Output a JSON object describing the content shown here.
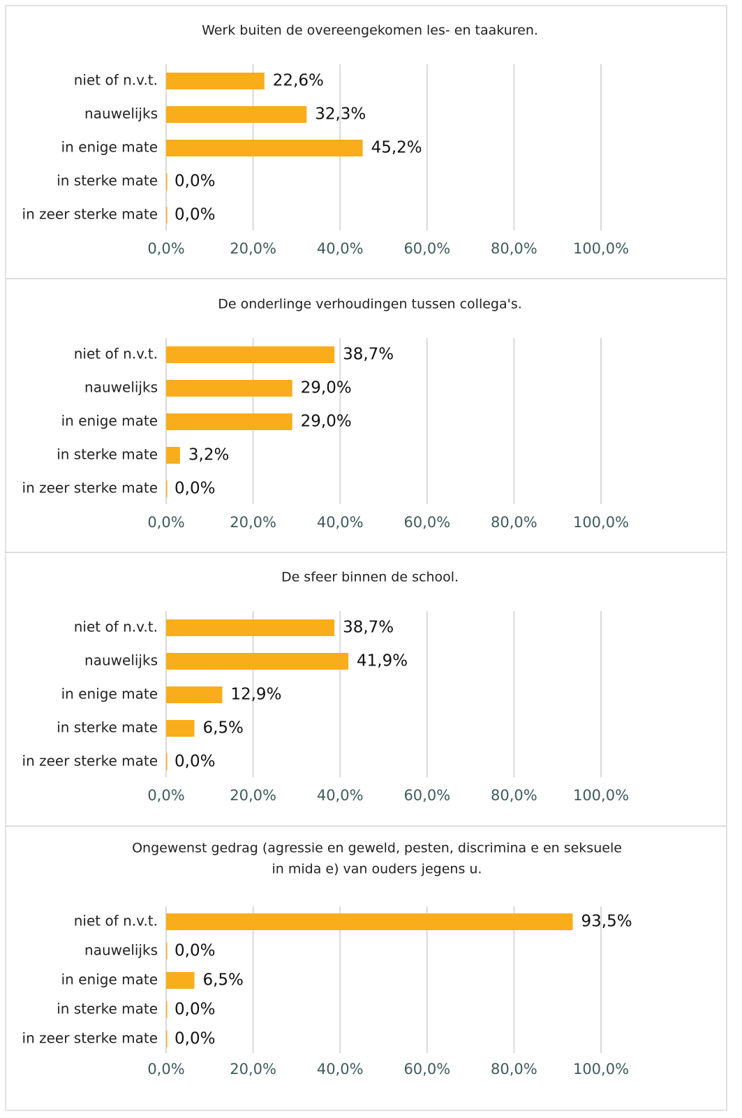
{
  "chart_data": [
    {
      "type": "bar",
      "orientation": "horizontal",
      "title": "Werk buiten de overeengekomen les- en taakuren.",
      "categories": [
        "niet of n.v.t.",
        "nauwelijks",
        "in enige mate",
        "in sterke mate",
        "in zeer sterke mate"
      ],
      "values": [
        22.6,
        32.3,
        45.2,
        0.0,
        0.0
      ],
      "value_labels": [
        "22,6%",
        "32,3%",
        "45,2%",
        "0,0%",
        "0,0%"
      ],
      "color": "#f9ad1b",
      "xlim": [
        0,
        100
      ],
      "xticks": [
        {
          "value": 0,
          "label": "0,0%"
        },
        {
          "value": 20,
          "label": "20,0%"
        },
        {
          "value": 40,
          "label": "40,0%"
        },
        {
          "value": 60,
          "label": "60,0%"
        },
        {
          "value": 80,
          "label": "80,0%"
        },
        {
          "value": 100,
          "label": "100,0%"
        }
      ],
      "grid": true
    },
    {
      "type": "bar",
      "orientation": "horizontal",
      "title": "De onderlinge verhoudingen tussen collega's.",
      "categories": [
        "niet of n.v.t.",
        "nauwelijks",
        "in enige mate",
        "in sterke mate",
        "in zeer sterke mate"
      ],
      "values": [
        38.7,
        29.0,
        29.0,
        3.2,
        0.0
      ],
      "value_labels": [
        "38,7%",
        "29,0%",
        "29,0%",
        "3,2%",
        "0,0%"
      ],
      "color": "#f9ad1b",
      "xlim": [
        0,
        100
      ],
      "xticks": [
        {
          "value": 0,
          "label": "0,0%"
        },
        {
          "value": 20,
          "label": "20,0%"
        },
        {
          "value": 40,
          "label": "40,0%"
        },
        {
          "value": 60,
          "label": "60,0%"
        },
        {
          "value": 80,
          "label": "80,0%"
        },
        {
          "value": 100,
          "label": "100,0%"
        }
      ],
      "grid": true
    },
    {
      "type": "bar",
      "orientation": "horizontal",
      "title": "De sfeer binnen de school.",
      "categories": [
        "niet of n.v.t.",
        "nauwelijks",
        "in enige mate",
        "in sterke mate",
        "in zeer sterke mate"
      ],
      "values": [
        38.7,
        41.9,
        12.9,
        6.5,
        0.0
      ],
      "value_labels": [
        "38,7%",
        "41,9%",
        "12,9%",
        "6,5%",
        "0,0%"
      ],
      "color": "#f9ad1b",
      "xlim": [
        0,
        100
      ],
      "xticks": [
        {
          "value": 0,
          "label": "0,0%"
        },
        {
          "value": 20,
          "label": "20,0%"
        },
        {
          "value": 40,
          "label": "40,0%"
        },
        {
          "value": 60,
          "label": "60,0%"
        },
        {
          "value": 80,
          "label": "80,0%"
        },
        {
          "value": 100,
          "label": "100,0%"
        }
      ],
      "grid": true
    },
    {
      "type": "bar",
      "orientation": "horizontal",
      "title": [
        "Ongewenst gedrag (agressie en geweld, pesten, discrimina e en seksuele",
        "in mida e) van ouders jegens u."
      ],
      "categories": [
        "niet of n.v.t.",
        "nauwelijks",
        "in enige mate",
        "in sterke mate",
        "in zeer sterke mate"
      ],
      "values": [
        93.5,
        0.0,
        6.5,
        0.0,
        0.0
      ],
      "value_labels": [
        "93,5%",
        "0,0%",
        "6,5%",
        "0,0%",
        "0,0%"
      ],
      "color": "#f9ad1b",
      "xlim": [
        0,
        100
      ],
      "xticks": [
        {
          "value": 0,
          "label": "0,0%"
        },
        {
          "value": 20,
          "label": "20,0%"
        },
        {
          "value": 40,
          "label": "40,0%"
        },
        {
          "value": 60,
          "label": "60,0%"
        },
        {
          "value": 80,
          "label": "80,0%"
        },
        {
          "value": 100,
          "label": "100,0%"
        }
      ],
      "grid": true
    }
  ]
}
